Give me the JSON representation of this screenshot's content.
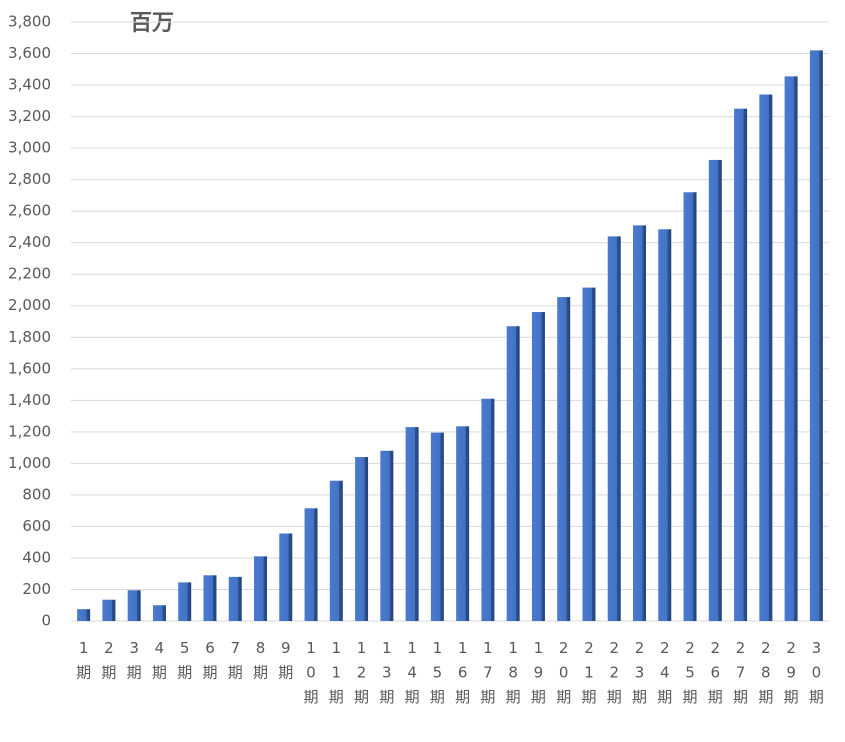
{
  "chart_data": {
    "type": "bar",
    "title": "百万",
    "categories": [
      "1期",
      "2期",
      "3期",
      "4期",
      "5期",
      "6期",
      "7期",
      "8期",
      "9期",
      "10期",
      "11期",
      "12期",
      "13期",
      "14期",
      "15期",
      "16期",
      "17期",
      "18期",
      "19期",
      "20期",
      "21期",
      "22期",
      "23期",
      "24期",
      "25期",
      "26期",
      "27期",
      "28期",
      "29期",
      "30期"
    ],
    "values": [
      75,
      135,
      195,
      100,
      245,
      290,
      280,
      410,
      555,
      715,
      890,
      1040,
      1080,
      1230,
      1195,
      1235,
      1410,
      1870,
      1960,
      2055,
      2115,
      2440,
      2510,
      2485,
      2720,
      2925,
      3250,
      3340,
      3455,
      3620
    ],
    "color": "#4472c4",
    "ylim": [
      0,
      3800
    ],
    "yticks": [
      0,
      200,
      400,
      600,
      800,
      {
        "value": 1000,
        "label": "1,000"
      },
      {
        "value": 1200,
        "label": "1,200"
      },
      {
        "value": 1400,
        "label": "1,400"
      },
      {
        "value": 1600,
        "label": "1,600"
      },
      {
        "value": 1800,
        "label": "1,800"
      },
      {
        "value": 2000,
        "label": "2,000"
      },
      {
        "value": 2200,
        "label": "2,200"
      },
      {
        "value": 2400,
        "label": "2,400"
      },
      {
        "value": 2600,
        "label": "2,600"
      },
      {
        "value": 2800,
        "label": "2,800"
      },
      {
        "value": 3000,
        "label": "3,000"
      },
      {
        "value": 3200,
        "label": "3,200"
      },
      {
        "value": 3400,
        "label": "3,400"
      },
      {
        "value": 3600,
        "label": "3,600"
      },
      {
        "value": 3800,
        "label": "3,800"
      }
    ],
    "grid": true
  }
}
